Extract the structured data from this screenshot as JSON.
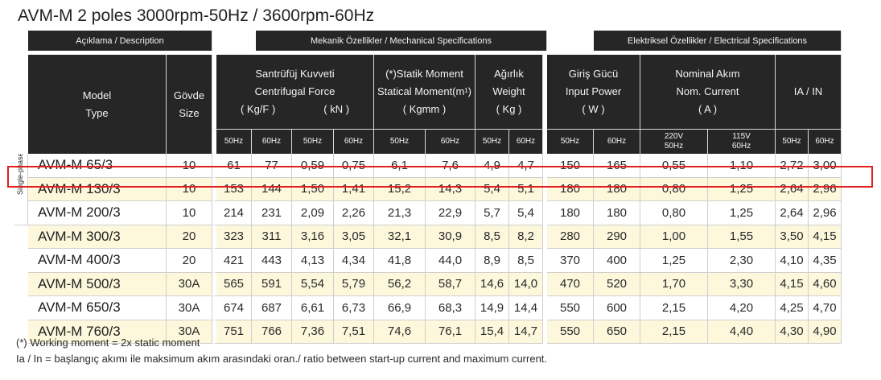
{
  "title": "AVM-M 2 poles 3000rpm-50Hz  / 3600rpm-60Hz",
  "groups": {
    "description": "Açıklama / Description",
    "mechanical": "Mekanik Özellikler / Mechanical Specifications",
    "electrical": "Elektriksel Özellikler / Electrical Specifications"
  },
  "side_label": "Single-phase",
  "headers": {
    "model": [
      "Model",
      "Type"
    ],
    "size": [
      "Gövde",
      "Size"
    ],
    "centrifugal": [
      "Santrüfüj  Kuvveti",
      "Centrifugal Force"
    ],
    "kgf": "( Kg/F )",
    "kn": "( kN )",
    "static_moment": [
      "(*)Statik Moment",
      "Statical Moment(m¹)",
      "( Kgmm )"
    ],
    "weight": [
      "Ağırlık",
      "Weight",
      "( Kg )"
    ],
    "input_power": [
      "Giriş Gücü",
      "Input Power",
      "( W )"
    ],
    "nominal_current": [
      "Nominal Akım",
      "Nom. Current",
      "( A )"
    ],
    "ia_in": "IA / IN"
  },
  "freq": {
    "hz50": "50Hz",
    "hz60": "60Hz",
    "v220": [
      "220V",
      "50Hz"
    ],
    "v115": [
      "115V",
      "60Hz"
    ]
  },
  "rows": [
    {
      "model": "AVM-M 65/3",
      "size": "10",
      "kgf50": "61",
      "kgf60": "77",
      "kn50": "0,59",
      "kn60": "0,75",
      "sm50": "6,1",
      "sm60": "7,6",
      "wt50": "4,9",
      "wt60": "4,7",
      "p50": "150",
      "p60": "165",
      "a220": "0,55",
      "a115": "1,10",
      "ia50": "2,72",
      "ia60": "3,00"
    },
    {
      "model": "AVM-M 130/3",
      "size": "10",
      "kgf50": "153",
      "kgf60": "144",
      "kn50": "1,50",
      "kn60": "1,41",
      "sm50": "15,2",
      "sm60": "14,3",
      "wt50": "5,4",
      "wt60": "5,1",
      "p50": "180",
      "p60": "180",
      "a220": "0,80",
      "a115": "1,25",
      "ia50": "2,64",
      "ia60": "2,96"
    },
    {
      "model": "AVM-M 200/3",
      "size": "10",
      "kgf50": "214",
      "kgf60": "231",
      "kn50": "2,09",
      "kn60": "2,26",
      "sm50": "21,3",
      "sm60": "22,9",
      "wt50": "5,7",
      "wt60": "5,4",
      "p50": "180",
      "p60": "180",
      "a220": "0,80",
      "a115": "1,25",
      "ia50": "2,64",
      "ia60": "2,96"
    },
    {
      "model": "AVM-M 300/3",
      "size": "20",
      "kgf50": "323",
      "kgf60": "311",
      "kn50": "3,16",
      "kn60": "3,05",
      "sm50": "32,1",
      "sm60": "30,9",
      "wt50": "8,5",
      "wt60": "8,2",
      "p50": "280",
      "p60": "290",
      "a220": "1,00",
      "a115": "1,55",
      "ia50": "3,50",
      "ia60": "4,15"
    },
    {
      "model": "AVM-M 400/3",
      "size": "20",
      "kgf50": "421",
      "kgf60": "443",
      "kn50": "4,13",
      "kn60": "4,34",
      "sm50": "41,8",
      "sm60": "44,0",
      "wt50": "8,9",
      "wt60": "8,5",
      "p50": "370",
      "p60": "400",
      "a220": "1,25",
      "a115": "2,30",
      "ia50": "4,10",
      "ia60": "4,35"
    },
    {
      "model": "AVM-M 500/3",
      "size": "30A",
      "kgf50": "565",
      "kgf60": "591",
      "kn50": "5,54",
      "kn60": "5,79",
      "sm50": "56,2",
      "sm60": "58,7",
      "wt50": "14,6",
      "wt60": "14,0",
      "p50": "470",
      "p60": "520",
      "a220": "1,70",
      "a115": "3,30",
      "ia50": "4,15",
      "ia60": "4,60"
    },
    {
      "model": "AVM-M 650/3",
      "size": "30A",
      "kgf50": "674",
      "kgf60": "687",
      "kn50": "6,61",
      "kn60": "6,73",
      "sm50": "66,9",
      "sm60": "68,3",
      "wt50": "14,9",
      "wt60": "14,4",
      "p50": "550",
      "p60": "600",
      "a220": "2,15",
      "a115": "4,20",
      "ia50": "4,25",
      "ia60": "4,70"
    },
    {
      "model": "AVM-M 760/3",
      "size": "30A",
      "kgf50": "751",
      "kgf60": "766",
      "kn50": "7,36",
      "kn60": "7,51",
      "sm50": "74,6",
      "sm60": "76,1",
      "wt50": "15,4",
      "wt60": "14,7",
      "p50": "550",
      "p60": "650",
      "a220": "2,15",
      "a115": "4,40",
      "ia50": "4,30",
      "ia60": "4,90"
    }
  ],
  "highlighted_row": "AVM-M 130/3",
  "colors": {
    "header": "#262626",
    "row_alt": "#fdf7dc",
    "highlight": "#e02020"
  },
  "notes": [
    "(*) Working moment = 2x static moment",
    "Ia / In = başlangıç akımı ile maksimum akım arasındaki oran./ ratio between start-up current and maximum current."
  ]
}
